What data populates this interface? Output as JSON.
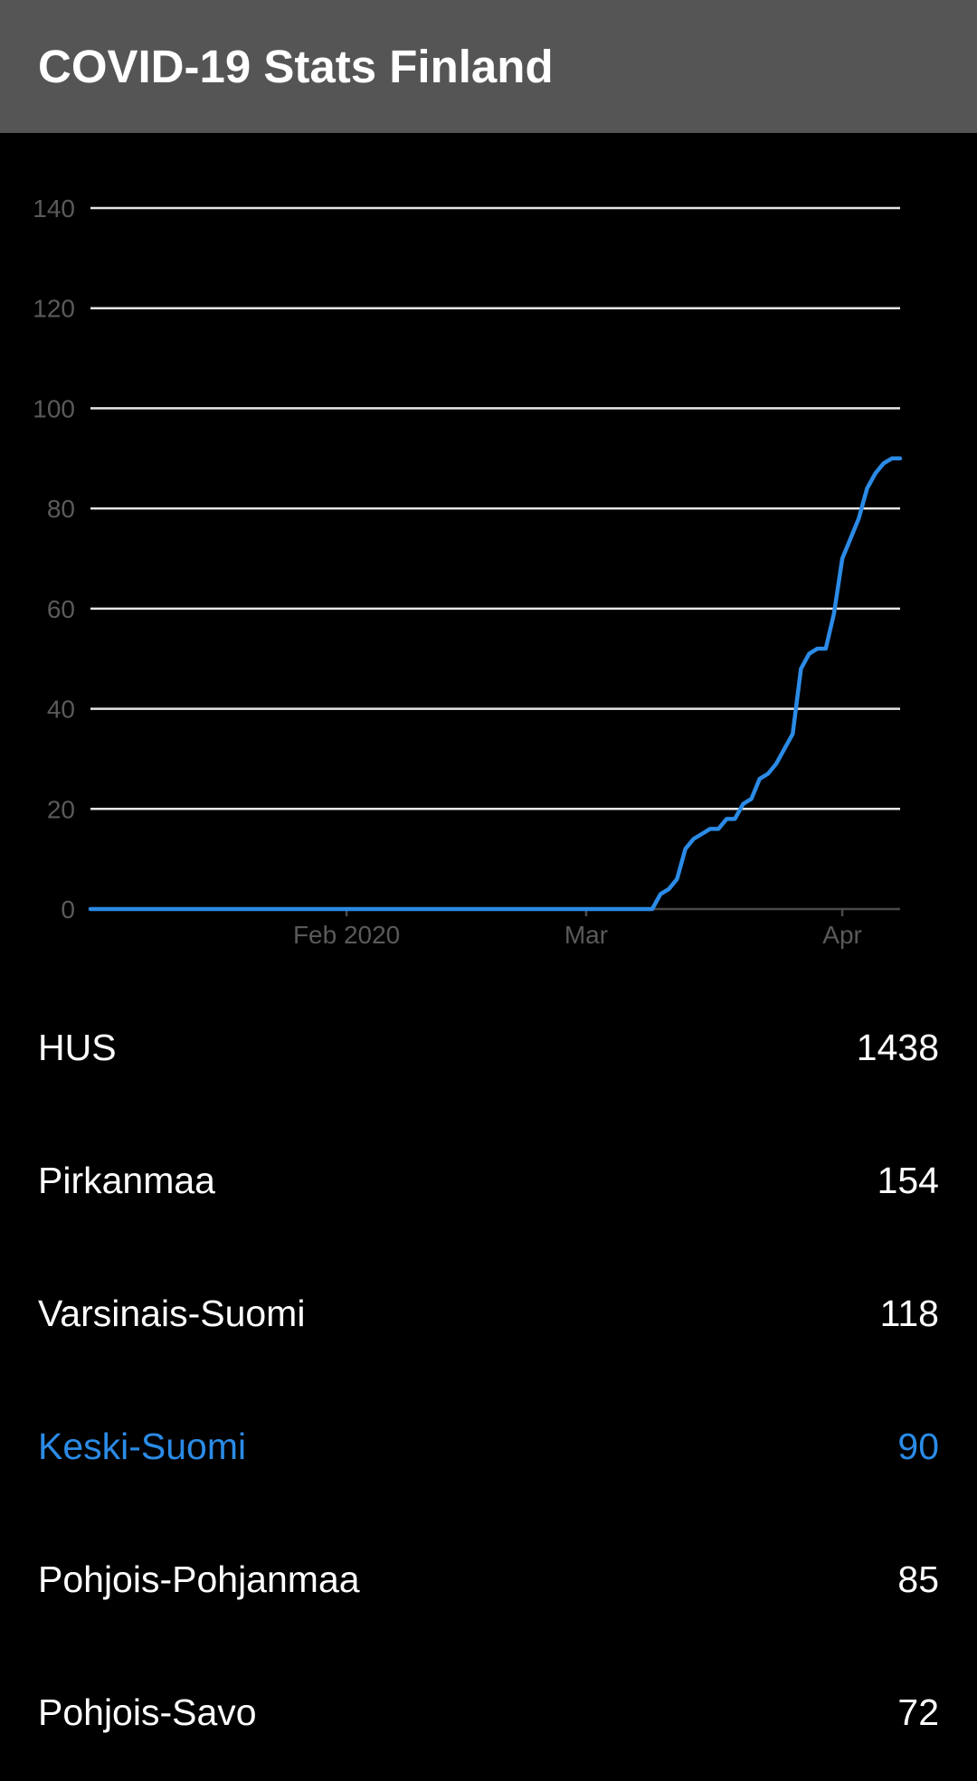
{
  "app": {
    "title": "COVID-19 Stats Finland"
  },
  "colors": {
    "app_bar": "#555555",
    "background": "#000000",
    "text": "#ffffff",
    "accent": "#2b8be6",
    "axis_label": "#5a5a5a",
    "gridline": "#e6e6e6"
  },
  "chart_data": {
    "type": "line",
    "title": "",
    "xlabel": "",
    "ylabel": "",
    "ylim": [
      0,
      140
    ],
    "yticks": [
      0,
      20,
      40,
      60,
      80,
      100,
      120,
      140
    ],
    "xlim": [
      "2020-01-01",
      "2020-04-08"
    ],
    "xticks": [
      {
        "date": "2020-02-01",
        "label": "Feb 2020"
      },
      {
        "date": "2020-03-01",
        "label": "Mar"
      },
      {
        "date": "2020-04-01",
        "label": "Apr"
      }
    ],
    "grid": true,
    "legend": "none",
    "series": [
      {
        "color": "#2b8be6",
        "points": [
          [
            "2020-01-01",
            0
          ],
          [
            "2020-03-09",
            0
          ],
          [
            "2020-03-10",
            3
          ],
          [
            "2020-03-11",
            4
          ],
          [
            "2020-03-12",
            6
          ],
          [
            "2020-03-13",
            12
          ],
          [
            "2020-03-14",
            14
          ],
          [
            "2020-03-15",
            15
          ],
          [
            "2020-03-16",
            16
          ],
          [
            "2020-03-17",
            16
          ],
          [
            "2020-03-18",
            18
          ],
          [
            "2020-03-19",
            18
          ],
          [
            "2020-03-20",
            21
          ],
          [
            "2020-03-21",
            22
          ],
          [
            "2020-03-22",
            26
          ],
          [
            "2020-03-23",
            27
          ],
          [
            "2020-03-24",
            29
          ],
          [
            "2020-03-25",
            32
          ],
          [
            "2020-03-26",
            35
          ],
          [
            "2020-03-27",
            48
          ],
          [
            "2020-03-28",
            51
          ],
          [
            "2020-03-29",
            52
          ],
          [
            "2020-03-30",
            52
          ],
          [
            "2020-03-31",
            59
          ],
          [
            "2020-04-01",
            70
          ],
          [
            "2020-04-02",
            74
          ],
          [
            "2020-04-03",
            78
          ],
          [
            "2020-04-04",
            84
          ],
          [
            "2020-04-05",
            87
          ],
          [
            "2020-04-06",
            89
          ],
          [
            "2020-04-07",
            90
          ],
          [
            "2020-04-08",
            90
          ]
        ]
      }
    ]
  },
  "regions": [
    {
      "name": "HUS",
      "count": "1438",
      "selected": false
    },
    {
      "name": "Pirkanmaa",
      "count": "154",
      "selected": false
    },
    {
      "name": "Varsinais-Suomi",
      "count": "118",
      "selected": false
    },
    {
      "name": "Keski-Suomi",
      "count": "90",
      "selected": true
    },
    {
      "name": "Pohjois-Pohjanmaa",
      "count": "85",
      "selected": false
    },
    {
      "name": "Pohjois-Savo",
      "count": "72",
      "selected": false
    }
  ]
}
